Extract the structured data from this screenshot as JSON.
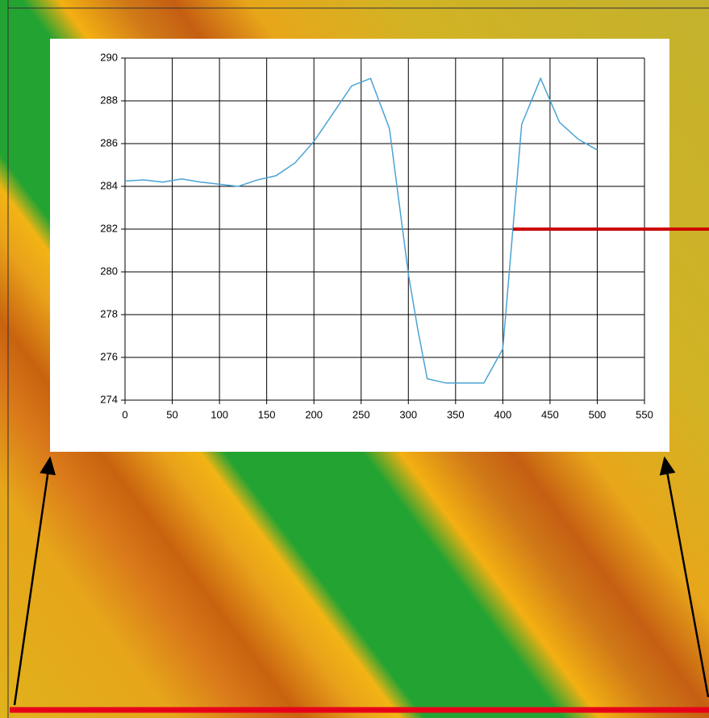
{
  "chart_data": {
    "type": "line",
    "x": [
      0,
      20,
      40,
      60,
      80,
      100,
      120,
      140,
      160,
      180,
      200,
      220,
      240,
      260,
      280,
      300,
      310,
      320,
      340,
      360,
      380,
      400,
      420,
      440,
      460,
      480,
      500
    ],
    "values": [
      284.25,
      284.3,
      284.2,
      284.35,
      284.2,
      284.1,
      284.0,
      284.3,
      284.5,
      285.1,
      286.1,
      287.4,
      288.7,
      289.05,
      286.7,
      279.9,
      277.3,
      275.0,
      274.8,
      274.8,
      274.8,
      276.4,
      286.9,
      289.05,
      287.0,
      286.2,
      285.7
    ],
    "color": "#4aa3d4",
    "xlim": [
      0,
      550
    ],
    "xticks": [
      0,
      50,
      100,
      150,
      200,
      250,
      300,
      350,
      400,
      450,
      500,
      550
    ],
    "ylim": [
      274,
      290
    ],
    "yticks": [
      274,
      276,
      278,
      280,
      282,
      284,
      286,
      288,
      290
    ],
    "grid": true
  }
}
